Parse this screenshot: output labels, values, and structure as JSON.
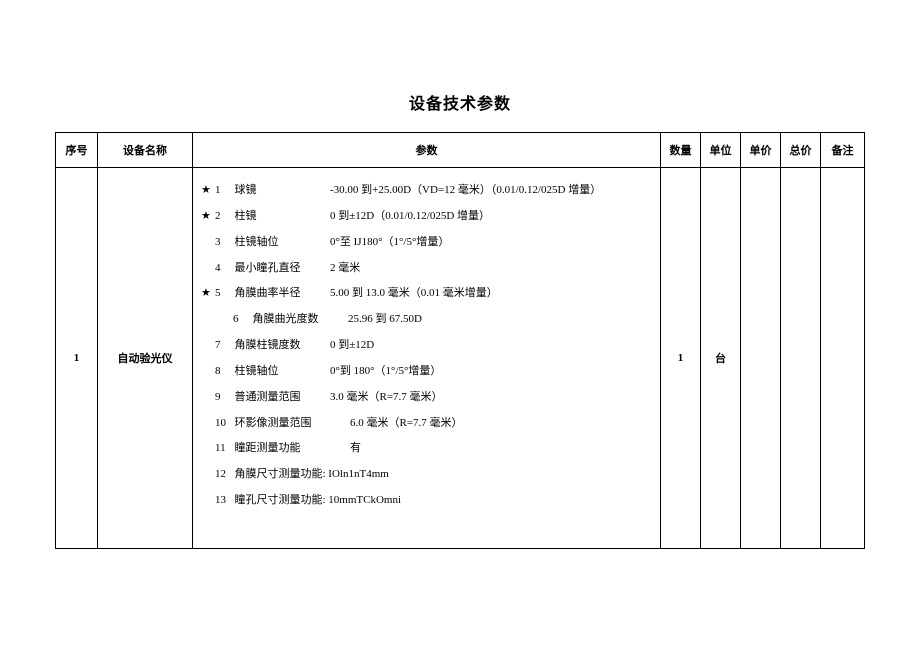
{
  "title": "设备技术参数",
  "headers": {
    "seq": "序号",
    "name": "设备名称",
    "param": "参数",
    "qty": "数量",
    "unit": "单位",
    "uprice": "单价",
    "total": "总价",
    "note": "备注"
  },
  "row": {
    "seq": "1",
    "name": "自动验光仪",
    "qty": "1",
    "unit": "台",
    "uprice": "",
    "total": "",
    "note": ""
  },
  "params": [
    {
      "star": "★",
      "idx": "1",
      "label": "球镜",
      "lw": "label-w1",
      "val": "-30.00 到+25.00D（VD=12 毫米）（0.01/0.12/025D 增量）"
    },
    {
      "star": "★",
      "idx": "2",
      "label": "柱镜",
      "lw": "label-w1",
      "val": "0 到±12D（0.01/0.12/025D 增量）"
    },
    {
      "star": "",
      "idx": "3",
      "label": "柱镜轴位",
      "lw": "label-w1",
      "val": "0°至 IJ180°（1°/5°增量）"
    },
    {
      "star": "",
      "idx": "4",
      "label": "最小瞳孔直径",
      "lw": "label-w1",
      "val": "2 毫米"
    },
    {
      "star": "★",
      "idx": "5",
      "label": "角膜曲率半径",
      "lw": "label-w1",
      "val": "5.00 到 13.0 毫米（0.01 毫米增量）"
    },
    {
      "star": "",
      "idx": "6",
      "label": "角膜曲光度数",
      "lw": "label-w1",
      "val": "25.96 到 67.50D",
      "indent": true
    },
    {
      "star": "",
      "idx": "7",
      "label": "角膜柱镜度数",
      "lw": "label-w1",
      "val": "0 到±12D"
    },
    {
      "star": "",
      "idx": "8",
      "label": "柱镜轴位",
      "lw": "label-w1",
      "val": "0°到 180°（1°/5°增量）"
    },
    {
      "star": "",
      "idx": "9",
      "label": "普通测量范围",
      "lw": "label-w1",
      "val": "3.0 毫米（R=7.7 毫米）"
    },
    {
      "star": "",
      "idx": "10",
      "label": "环影像测量范围",
      "lw": "label-w2",
      "val": "6.0 毫米（R=7.7 毫米）"
    },
    {
      "star": "",
      "idx": "11",
      "label": "瞳距测量功能",
      "lw": "label-w2",
      "val": "有"
    },
    {
      "star": "",
      "idx": "12",
      "label": "角膜尺寸测量功能: IOln1nT4mm",
      "lw": "",
      "val": ""
    },
    {
      "star": "",
      "idx": "13",
      "label": "瞳孔尺寸测量功能: 10mmTCkOmni",
      "lw": "",
      "val": ""
    }
  ]
}
